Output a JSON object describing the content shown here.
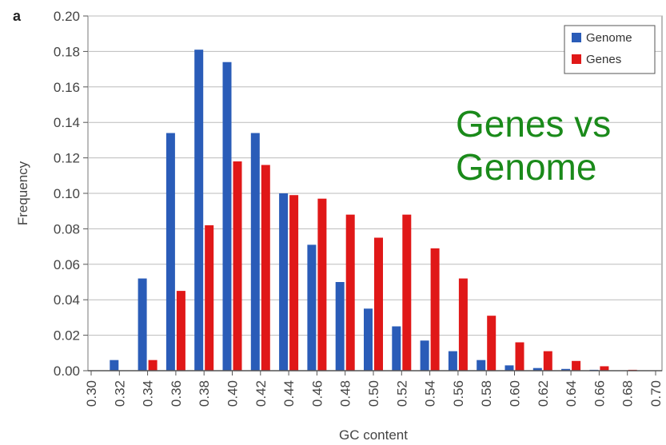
{
  "chart_data": {
    "type": "bar",
    "panel_label": "a",
    "xlabel": "GC content",
    "ylabel": "Frequency",
    "ylim": [
      0,
      0.2
    ],
    "yticks": [
      "0.00",
      "0.02",
      "0.04",
      "0.06",
      "0.08",
      "0.10",
      "0.12",
      "0.14",
      "0.16",
      "0.18",
      "0.20"
    ],
    "categories": [
      "0.30",
      "0.32",
      "0.34",
      "0.36",
      "0.38",
      "0.40",
      "0.42",
      "0.44",
      "0.46",
      "0.48",
      "0.50",
      "0.52",
      "0.54",
      "0.56",
      "0.58",
      "0.60",
      "0.62",
      "0.64",
      "0.66",
      "0.68",
      "0.70"
    ],
    "grid": "horizontal",
    "legend_position": "top-right",
    "series": [
      {
        "name": "Genome",
        "color": "#2a5cb8",
        "values": [
          0,
          0.006,
          0.052,
          0.134,
          0.181,
          0.174,
          0.134,
          0.1,
          0.071,
          0.05,
          0.035,
          0.025,
          0.017,
          0.011,
          0.006,
          0.003,
          0.0015,
          0.001,
          0.0005,
          0,
          0
        ]
      },
      {
        "name": "Genes",
        "color": "#e01818",
        "values": [
          0,
          0,
          0.006,
          0.045,
          0.082,
          0.118,
          0.116,
          0.099,
          0.097,
          0.088,
          0.075,
          0.088,
          0.069,
          0.052,
          0.031,
          0.016,
          0.011,
          0.0055,
          0.0025,
          0.0005,
          0
        ]
      }
    ]
  },
  "annotation": {
    "line1": "Genes vs",
    "line2": "Genome"
  }
}
